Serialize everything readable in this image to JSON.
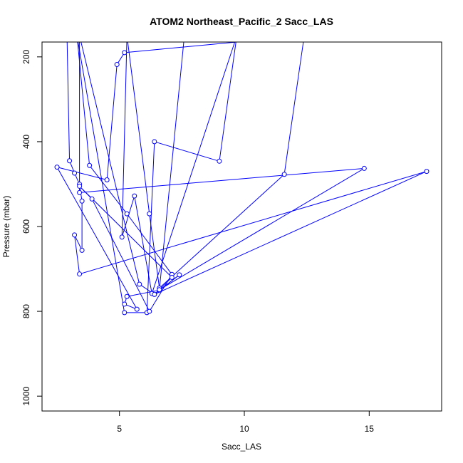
{
  "chart_data": {
    "type": "line",
    "title": "ATOM2 Northeast_Pacific_2 Sacc_LAS",
    "xlabel": "Sacc_LAS",
    "ylabel": "Pressure (mbar)",
    "xlim": [
      1.9,
      17.9
    ],
    "ylim": [
      1035,
      165
    ],
    "y_inverted": true,
    "xticks": [
      5,
      10,
      15
    ],
    "yticks": [
      200,
      400,
      600,
      800,
      1000
    ],
    "grid": false,
    "legend": "none",
    "series_color": "#0000ff",
    "series": [
      {
        "x": [
          2.9,
          3.0,
          3.2,
          3.4,
          3.5,
          3.5,
          3.2,
          3.4,
          17.3,
          6.4,
          7.4,
          6.6,
          5.3,
          5.2,
          5.7,
          2.5,
          4.5,
          4.9,
          5.2,
          12.4,
          11.6,
          6.6,
          6.2,
          5.3,
          5.1,
          5.6,
          6.3,
          9.7,
          9.0,
          6.4,
          6.1,
          5.2,
          3.3,
          3.8,
          5.3,
          7.1,
          6.2,
          3.9,
          3.4,
          7.1,
          6.4,
          5.8,
          3.4,
          3.4,
          14.8,
          6.6,
          7.6,
          6.0,
          5.5,
          5.2,
          4.9,
          4.5,
          3.3
        ],
        "y": [
          150,
          445,
          474,
          500,
          540,
          656,
          620,
          712,
          470,
          760,
          714,
          750,
          765,
          783,
          795,
          460,
          490,
          218,
          190,
          150,
          477,
          745,
          570,
          150,
          625,
          528,
          758,
          150,
          446,
          400,
          803,
          803,
          150,
          456,
          570,
          713,
          800,
          535,
          505,
          720,
          760,
          736,
          150,
          520,
          463,
          749,
          150,
          150,
          150,
          150,
          150,
          150,
          150
        ]
      }
    ],
    "x_axis_tick_labels": [
      "5",
      "10",
      "15"
    ],
    "y_axis_tick_labels": [
      "200",
      "400",
      "600",
      "800",
      "1000"
    ]
  }
}
